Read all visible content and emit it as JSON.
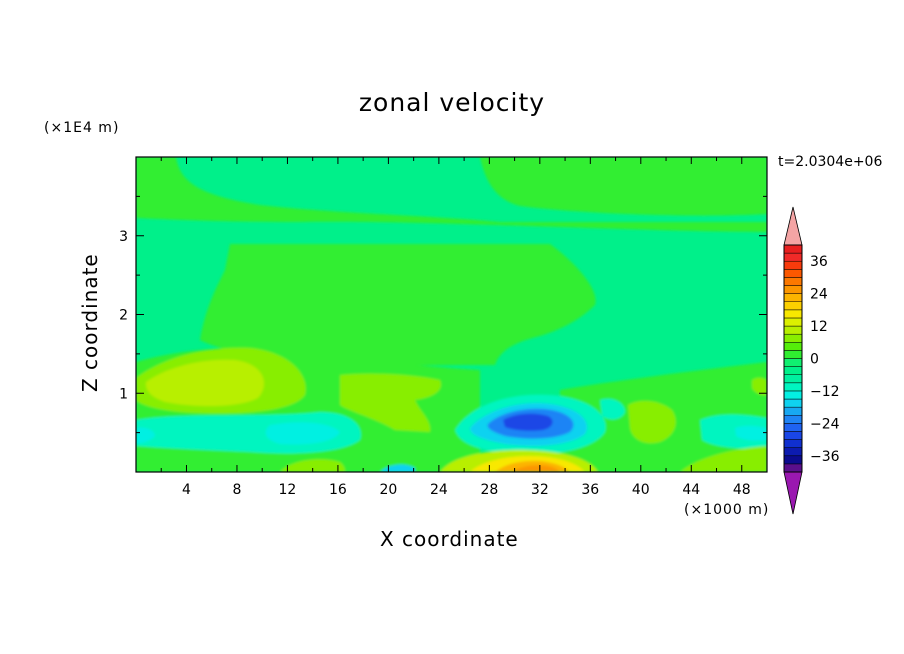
{
  "chart_data": {
    "type": "heatmap",
    "title": "zonal velocity",
    "xlabel": "X coordinate",
    "ylabel": "Z coordinate",
    "x_unit_label": "(×1000 m)",
    "z_unit_label": "(×1E4 m)",
    "time_label": "t=2.0304e+06",
    "xlim": [
      0,
      50
    ],
    "ylim": [
      0,
      4
    ],
    "x_ticks": [
      4,
      8,
      12,
      16,
      20,
      24,
      28,
      32,
      36,
      40,
      44,
      48
    ],
    "x_tick_labels": [
      "4",
      "8",
      "12",
      "16",
      "20",
      "24",
      "28",
      "32",
      "36",
      "40",
      "44",
      "48"
    ],
    "y_ticks": [
      1,
      2,
      3
    ],
    "y_tick_labels": [
      "1",
      "2",
      "3"
    ],
    "colorbar": {
      "levels": [
        -42,
        -39,
        -36,
        -33,
        -30,
        -27,
        -24,
        -21,
        -18,
        -15,
        -12,
        -9,
        -6,
        -3,
        0,
        3,
        6,
        9,
        12,
        15,
        18,
        21,
        24,
        27,
        30,
        33,
        36,
        39,
        42
      ],
      "tick_values": [
        36,
        24,
        12,
        0,
        -12,
        -24,
        -36
      ],
      "tick_labels": [
        "36",
        "24",
        "12",
        "0",
        "−12",
        "−24",
        "−36"
      ],
      "colors": [
        "#5a0f8c",
        "#0b0b8f",
        "#0c1bb0",
        "#1030d0",
        "#1a46e6",
        "#1f63f2",
        "#1f84f5",
        "#18a8f2",
        "#0fd2f0",
        "#04f0e2",
        "#00f5c0",
        "#00f0a0",
        "#00f08a",
        "#10f070",
        "#30ee30",
        "#55ee0a",
        "#88ee00",
        "#b8ef00",
        "#dcf000",
        "#f8e800",
        "#fcd000",
        "#fcb400",
        "#fc9600",
        "#fc7800",
        "#fc5800",
        "#f83b0c",
        "#f02a28",
        "#e81f1f"
      ],
      "over_color": "#f4a4a4",
      "under_color": "#9a18b0"
    },
    "regions_note_colors": {
      "background": "#00f08a",
      "upper_band": "#30ee30"
    },
    "features": [
      {
        "name": "upper-left lobe",
        "x": [
          0,
          10
        ],
        "z": [
          3.2,
          4.0
        ],
        "value": 1.5
      },
      {
        "name": "upper-right lobe",
        "x": [
          27,
          50
        ],
        "z": [
          3.1,
          4.0
        ],
        "value": 1.5
      },
      {
        "name": "central region",
        "x": [
          5,
          35
        ],
        "z": [
          1.2,
          2.95
        ],
        "value": 1.5
      },
      {
        "name": "left jet",
        "x": [
          0,
          12
        ],
        "z": [
          0.7,
          1.4
        ],
        "value": 13
      },
      {
        "name": "left jet core",
        "x": [
          2,
          9
        ],
        "z": [
          0.9,
          1.3
        ],
        "value": 16
      },
      {
        "name": "mid positive patch",
        "x": [
          16,
          24
        ],
        "z": [
          0.55,
          1.25
        ],
        "value": 7
      },
      {
        "name": "lower-left negative",
        "x": [
          0,
          18
        ],
        "z": [
          0.3,
          0.6
        ],
        "value": -10
      },
      {
        "name": "central negative core",
        "x": [
          25,
          36
        ],
        "z": [
          0.3,
          1.0
        ],
        "value": -20
      },
      {
        "name": "central negative minimum",
        "x": [
          29,
          33
        ],
        "z": [
          0.5,
          0.7
        ],
        "value": -27
      },
      {
        "name": "bottom positive jet",
        "x": [
          26,
          37
        ],
        "z": [
          0.0,
          0.25
        ],
        "value": 20
      },
      {
        "name": "bottom positive core",
        "x": [
          28,
          34
        ],
        "z": [
          0.0,
          0.12
        ],
        "value": 27
      },
      {
        "name": "right positive patch",
        "x": [
          38,
          43
        ],
        "z": [
          0.35,
          0.9
        ],
        "value": 7
      },
      {
        "name": "right low positive",
        "x": [
          44,
          50
        ],
        "z": [
          0.0,
          0.35
        ],
        "value": 9
      }
    ]
  }
}
